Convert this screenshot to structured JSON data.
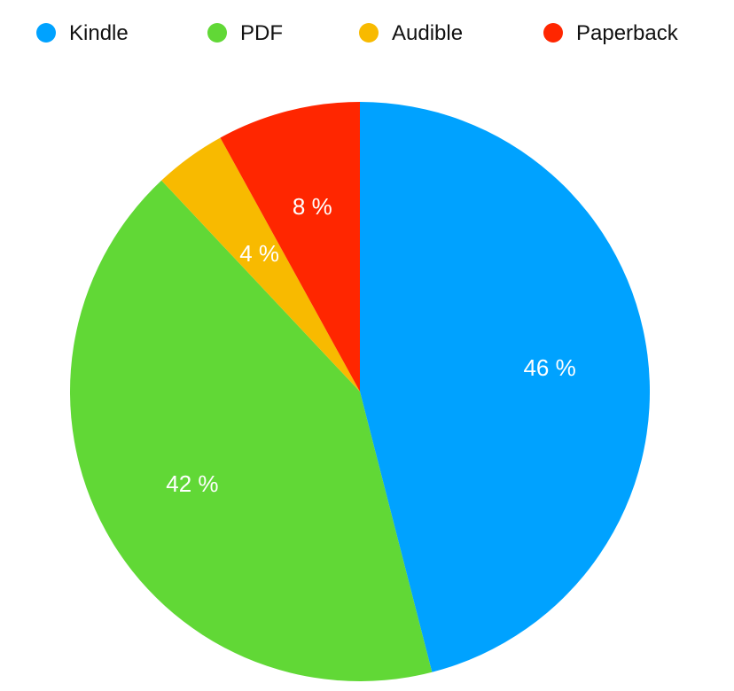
{
  "chart_data": {
    "type": "pie",
    "title": "",
    "legend_position": "top",
    "categories": [
      "Kindle",
      "PDF",
      "Audible",
      "Paperback"
    ],
    "values": [
      46,
      42,
      4,
      8
    ],
    "labels": [
      "46 %",
      "42 %",
      "4 %",
      "8 %"
    ],
    "colors": [
      "#00a2ff",
      "#61d836",
      "#f8ba00",
      "#ff2600"
    ],
    "start": "12 o'clock",
    "direction": "clockwise"
  }
}
